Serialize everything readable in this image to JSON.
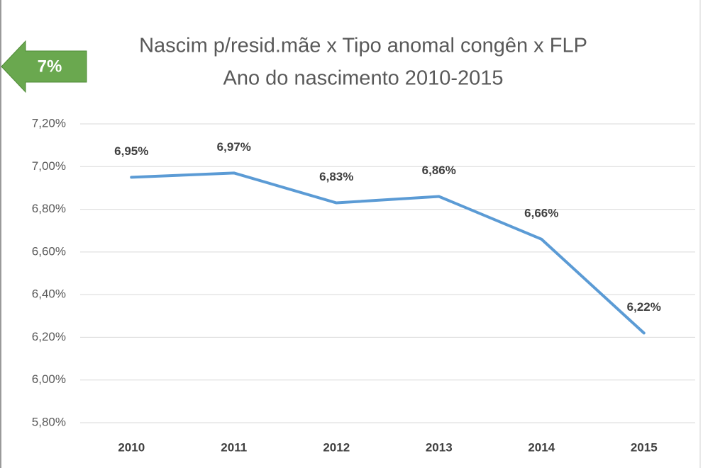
{
  "chart_data": {
    "type": "line",
    "title": "Nascim p/resid.mãe x Tipo anomal congên x FLP",
    "subtitle": "Ano do nascimento 2010-2015",
    "annotation": "7%",
    "categories": [
      "2010",
      "2011",
      "2012",
      "2013",
      "2014",
      "2015"
    ],
    "values": [
      6.95,
      6.97,
      6.83,
      6.86,
      6.66,
      6.22
    ],
    "value_labels": [
      "6,95%",
      "6,97%",
      "6,83%",
      "6,86%",
      "6,66%",
      "6,22%"
    ],
    "color": "#5b9bd5",
    "ylim": [
      5.8,
      7.2
    ],
    "yticks": [
      {
        "value": 5.8,
        "label": "5,80%"
      },
      {
        "value": 6.0,
        "label": "6,00%"
      },
      {
        "value": 6.2,
        "label": "6,20%"
      },
      {
        "value": 6.4,
        "label": "6,40%"
      },
      {
        "value": 6.6,
        "label": "6,60%"
      },
      {
        "value": 6.8,
        "label": "6,80%"
      },
      {
        "value": 7.0,
        "label": "7,00%"
      },
      {
        "value": 7.2,
        "label": "7,20%"
      }
    ],
    "grid": true
  }
}
